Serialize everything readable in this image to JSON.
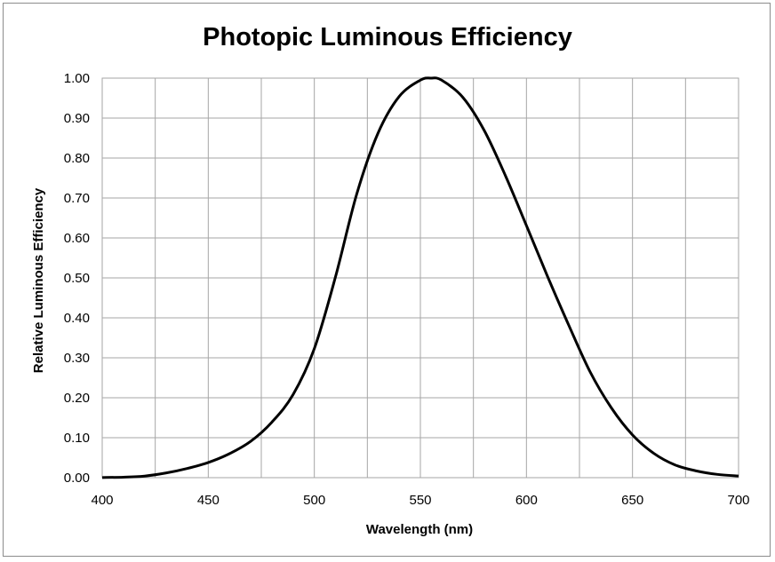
{
  "chart_data": {
    "type": "line",
    "title": "Photopic Luminous Efficiency",
    "xlabel": "Wavelength (nm)",
    "ylabel": "Relative Luminous Efficiency",
    "xlim": [
      400,
      700
    ],
    "ylim": [
      0,
      1
    ],
    "xticks": [
      400,
      450,
      500,
      550,
      600,
      650,
      700
    ],
    "yticks": [
      0,
      0.1,
      0.2,
      0.3,
      0.4,
      0.5,
      0.6,
      0.7,
      0.8,
      0.9,
      1.0
    ],
    "xtick_labels": [
      "400",
      "450",
      "500",
      "550",
      "600",
      "650",
      "700"
    ],
    "ytick_labels": [
      "0.00",
      "0.10",
      "0.20",
      "0.30",
      "0.40",
      "0.50",
      "0.60",
      "0.70",
      "0.80",
      "0.90",
      "1.00"
    ],
    "grid": true,
    "legend": false,
    "series": [
      {
        "line_color": "#000000",
        "x": [
          400,
          410,
          420,
          430,
          440,
          450,
          460,
          470,
          480,
          490,
          500,
          510,
          520,
          530,
          540,
          550,
          555,
          560,
          570,
          580,
          590,
          600,
          610,
          620,
          630,
          640,
          650,
          660,
          670,
          680,
          690,
          700
        ],
        "y": [
          0.0004,
          0.0012,
          0.004,
          0.0116,
          0.023,
          0.038,
          0.06,
          0.091,
          0.139,
          0.208,
          0.323,
          0.503,
          0.71,
          0.862,
          0.954,
          0.995,
          1.0,
          0.995,
          0.952,
          0.87,
          0.757,
          0.631,
          0.503,
          0.381,
          0.265,
          0.175,
          0.107,
          0.061,
          0.032,
          0.017,
          0.0082,
          0.0041
        ]
      }
    ]
  }
}
